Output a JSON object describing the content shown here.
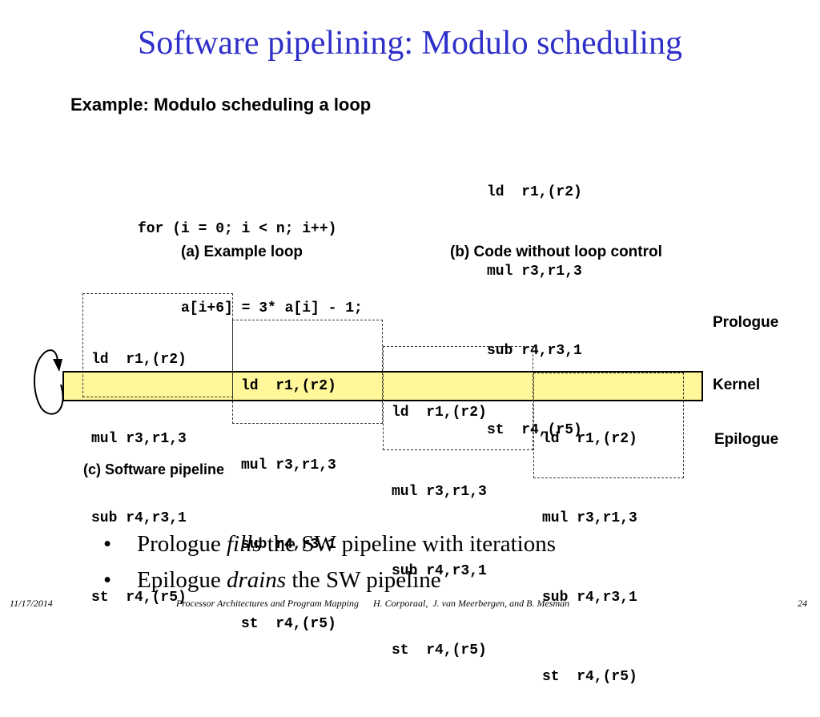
{
  "title": "Software pipelining: Modulo scheduling",
  "subtitle": "Example: Modulo scheduling a loop",
  "example_loop": {
    "lines": [
      "for (i = 0; i < n; i++)",
      "     a[i+6] = 3* a[i] - 1;"
    ],
    "caption": "(a) Example loop"
  },
  "code_without_control": {
    "lines": [
      "ld  r1,(r2)",
      "mul r3,r1,3",
      "sub r4,r3,1",
      "st  r4,(r5)"
    ],
    "caption": "(b) Code without loop control"
  },
  "pipeline": {
    "iterations": [
      [
        "ld  r1,(r2)",
        "mul r3,r1,3",
        "sub r4,r3,1",
        "st  r4,(r5)"
      ],
      [
        "ld  r1,(r2)",
        "mul r3,r1,3",
        "sub r4,r3,1",
        "st  r4,(r5)"
      ],
      [
        "ld  r1,(r2)",
        "mul r3,r1,3",
        "sub r4,r3,1",
        "st  r4,(r5)"
      ],
      [
        "ld  r1,(r2)",
        "mul r3,r1,3",
        "sub r4,r3,1",
        "st  r4,(r5)"
      ]
    ],
    "labels": {
      "prologue": "Prologue",
      "kernel": "Kernel",
      "epilogue": "Epilogue"
    },
    "caption": "(c) Software pipeline",
    "colors": {
      "kernel_fill": "#fff799",
      "title": "#2f2fc9"
    }
  },
  "bullets": [
    {
      "before": "Prologue ",
      "emph": "fills",
      "after": " the SW pipeline with iterations"
    },
    {
      "before": "Epilogue ",
      "emph": "drains",
      "after": " the SW pipeline"
    }
  ],
  "bullet_symbol": "•",
  "footer": {
    "date": "11/17/2014",
    "center": "Processor Architectures and Program Mapping      H. Corporaal,  J. van Meerbergen, and B. Mesman",
    "page": "24"
  }
}
